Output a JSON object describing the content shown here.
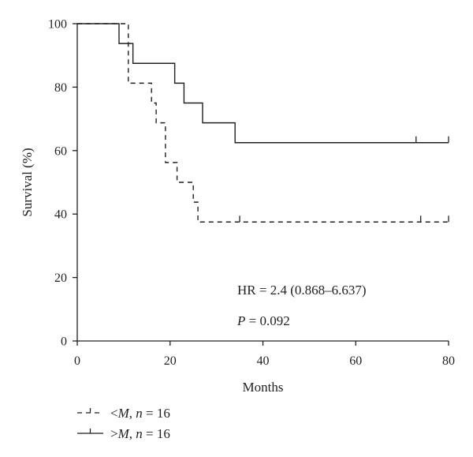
{
  "chart_data": {
    "type": "line",
    "subtype": "kaplan-meier-step",
    "xlabel": "Months",
    "ylabel": "Survival (%)",
    "xlim": [
      0,
      80
    ],
    "ylim": [
      0,
      100
    ],
    "xticks": [
      "0",
      "20",
      "40",
      "60",
      "80"
    ],
    "yticks": [
      "0",
      "20",
      "40",
      "60",
      "80",
      "100"
    ],
    "grid": false,
    "legend_position": "bottom-left",
    "annotations": {
      "hr": "HR = 2.4 (0.868–6.637)",
      "p_italic": "P",
      "p_rest": " = 0.092"
    },
    "series": [
      {
        "key": "above",
        "legend_main": "",
        "legend_prefix": ">",
        "legend_italic": "M",
        "legend_sep": ", ",
        "legend_n": "n",
        "legend_suffix": " = 16",
        "style": "solid",
        "color": "#231f20",
        "steps": [
          [
            0,
            100
          ],
          [
            9,
            93.75
          ],
          [
            12,
            87.5
          ],
          [
            21,
            81.25
          ],
          [
            23,
            75
          ],
          [
            27,
            68.75
          ],
          [
            34,
            62.5
          ],
          [
            80,
            62.5
          ]
        ],
        "censored": [
          73,
          80
        ]
      },
      {
        "key": "below",
        "legend_prefix": "<",
        "legend_italic": "M",
        "legend_sep": ", ",
        "legend_n": "n",
        "legend_suffix": " = 16",
        "style": "dashed",
        "color": "#231f20",
        "steps": [
          [
            0,
            100
          ],
          [
            11,
            81.25
          ],
          [
            16,
            75
          ],
          [
            17,
            68.75
          ],
          [
            19,
            56.25
          ],
          [
            21.5,
            50
          ],
          [
            25,
            43.75
          ],
          [
            26,
            37.5
          ],
          [
            80,
            37.5
          ]
        ],
        "censored": [
          35,
          74,
          80
        ]
      }
    ]
  }
}
